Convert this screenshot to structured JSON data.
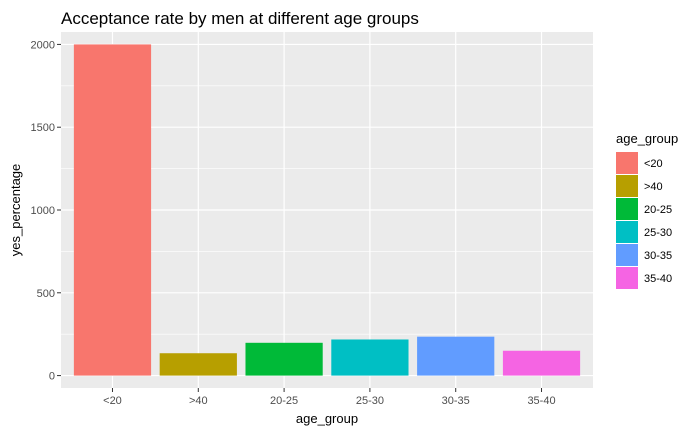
{
  "chart_data": {
    "type": "bar",
    "title": "Acceptance rate by men at different age groups",
    "xlabel": "age_group",
    "ylabel": "yes_percentage",
    "categories": [
      "<20",
      ">40",
      "20-25",
      "25-30",
      "30-35",
      "35-40"
    ],
    "values": [
      2000,
      135,
      198,
      218,
      235,
      150
    ],
    "colors": [
      "#F8766D",
      "#B79F00",
      "#00BA38",
      "#00BFC4",
      "#619CFF",
      "#F564E3"
    ],
    "ylim": [
      -75,
      2075
    ],
    "yticks": [
      0,
      500,
      1000,
      1500,
      2000
    ],
    "ytick_labels": [
      "0",
      "500",
      "1000",
      "1500",
      "2000"
    ],
    "grid": true,
    "panel_background": "#EBEBEB",
    "legend": {
      "title": "age_group",
      "position": "right",
      "entries": [
        "<20",
        ">40",
        "20-25",
        "25-30",
        "30-35",
        "35-40"
      ]
    }
  }
}
